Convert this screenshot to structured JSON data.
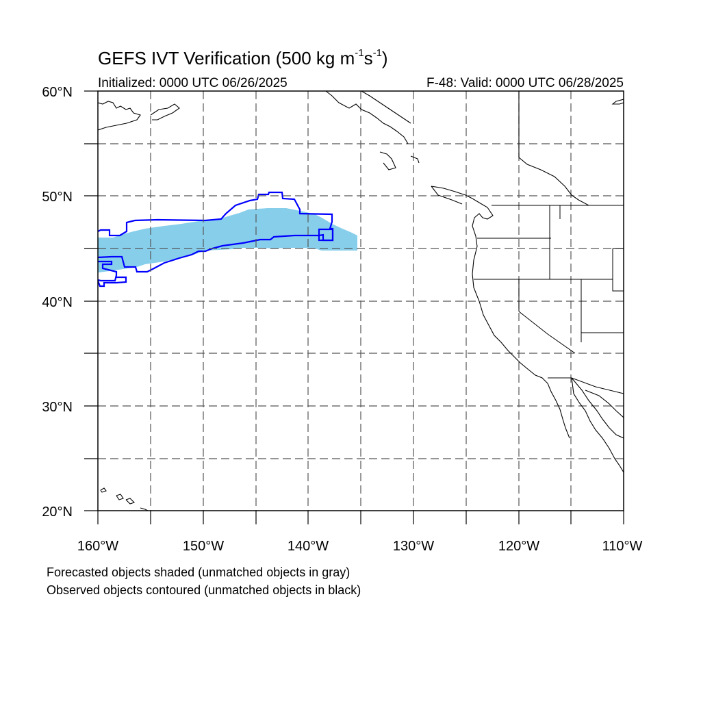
{
  "title": {
    "main": "GEFS IVT Verification (500 kg m",
    "exp1": "-1",
    "mid": "s",
    "exp2": "-1",
    "end": ")"
  },
  "initialized": "Initialized: 0000 UTC 06/26/2025",
  "valid": "F-48: Valid: 0000 UTC 06/28/2025",
  "axes": {
    "lat_labels": [
      "60°N",
      "50°N",
      "40°N",
      "30°N",
      "20°N"
    ],
    "lon_labels": [
      "160°W",
      "150°W",
      "140°W",
      "130°W",
      "120°W",
      "110°W"
    ],
    "lat_range": [
      20,
      60
    ],
    "lon_range": [
      -160,
      -110
    ]
  },
  "legend": {
    "line1": "Forecasted objects shaded (unmatched objects in gray)",
    "line2": "Observed objects contoured (unmatched objects in black)"
  },
  "colors": {
    "forecast_fill": "#87ceeb",
    "observed_contour": "#0000ff",
    "coastline": "#000000",
    "grid": "#000000"
  }
}
